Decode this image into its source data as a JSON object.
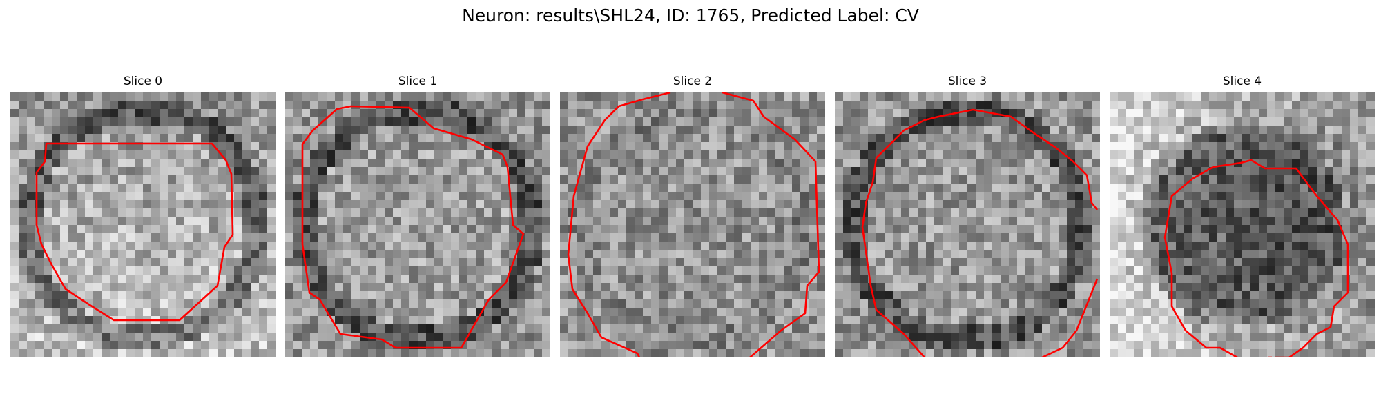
{
  "figure": {
    "title": "Neuron: results\\SHL24, ID: 1765, Predicted Label: CV"
  },
  "colors": {
    "contour": "#ff0000",
    "background": "#ffffff"
  },
  "panels": [
    {
      "title": "Slice 0",
      "seed": 11,
      "center": [
        0.5,
        0.5
      ],
      "darkRing": true,
      "innerTone": 0.6,
      "gradient": "bottom-light"
    },
    {
      "title": "Slice 1",
      "seed": 23,
      "center": [
        0.5,
        0.5
      ],
      "darkRing": true,
      "innerTone": 0.62,
      "gradient": "none"
    },
    {
      "title": "Slice 2",
      "seed": 37,
      "center": [
        0.5,
        0.5
      ],
      "darkRing": false,
      "innerTone": 0.58,
      "gradient": "none"
    },
    {
      "title": "Slice 3",
      "seed": 41,
      "center": [
        0.5,
        0.5
      ],
      "darkRing": true,
      "innerTone": 0.6,
      "gradient": "none"
    },
    {
      "title": "Slice 4",
      "seed": 53,
      "center": [
        0.5,
        0.5
      ],
      "darkRing": false,
      "innerTone": 0.3,
      "gradient": "left-light"
    }
  ]
}
